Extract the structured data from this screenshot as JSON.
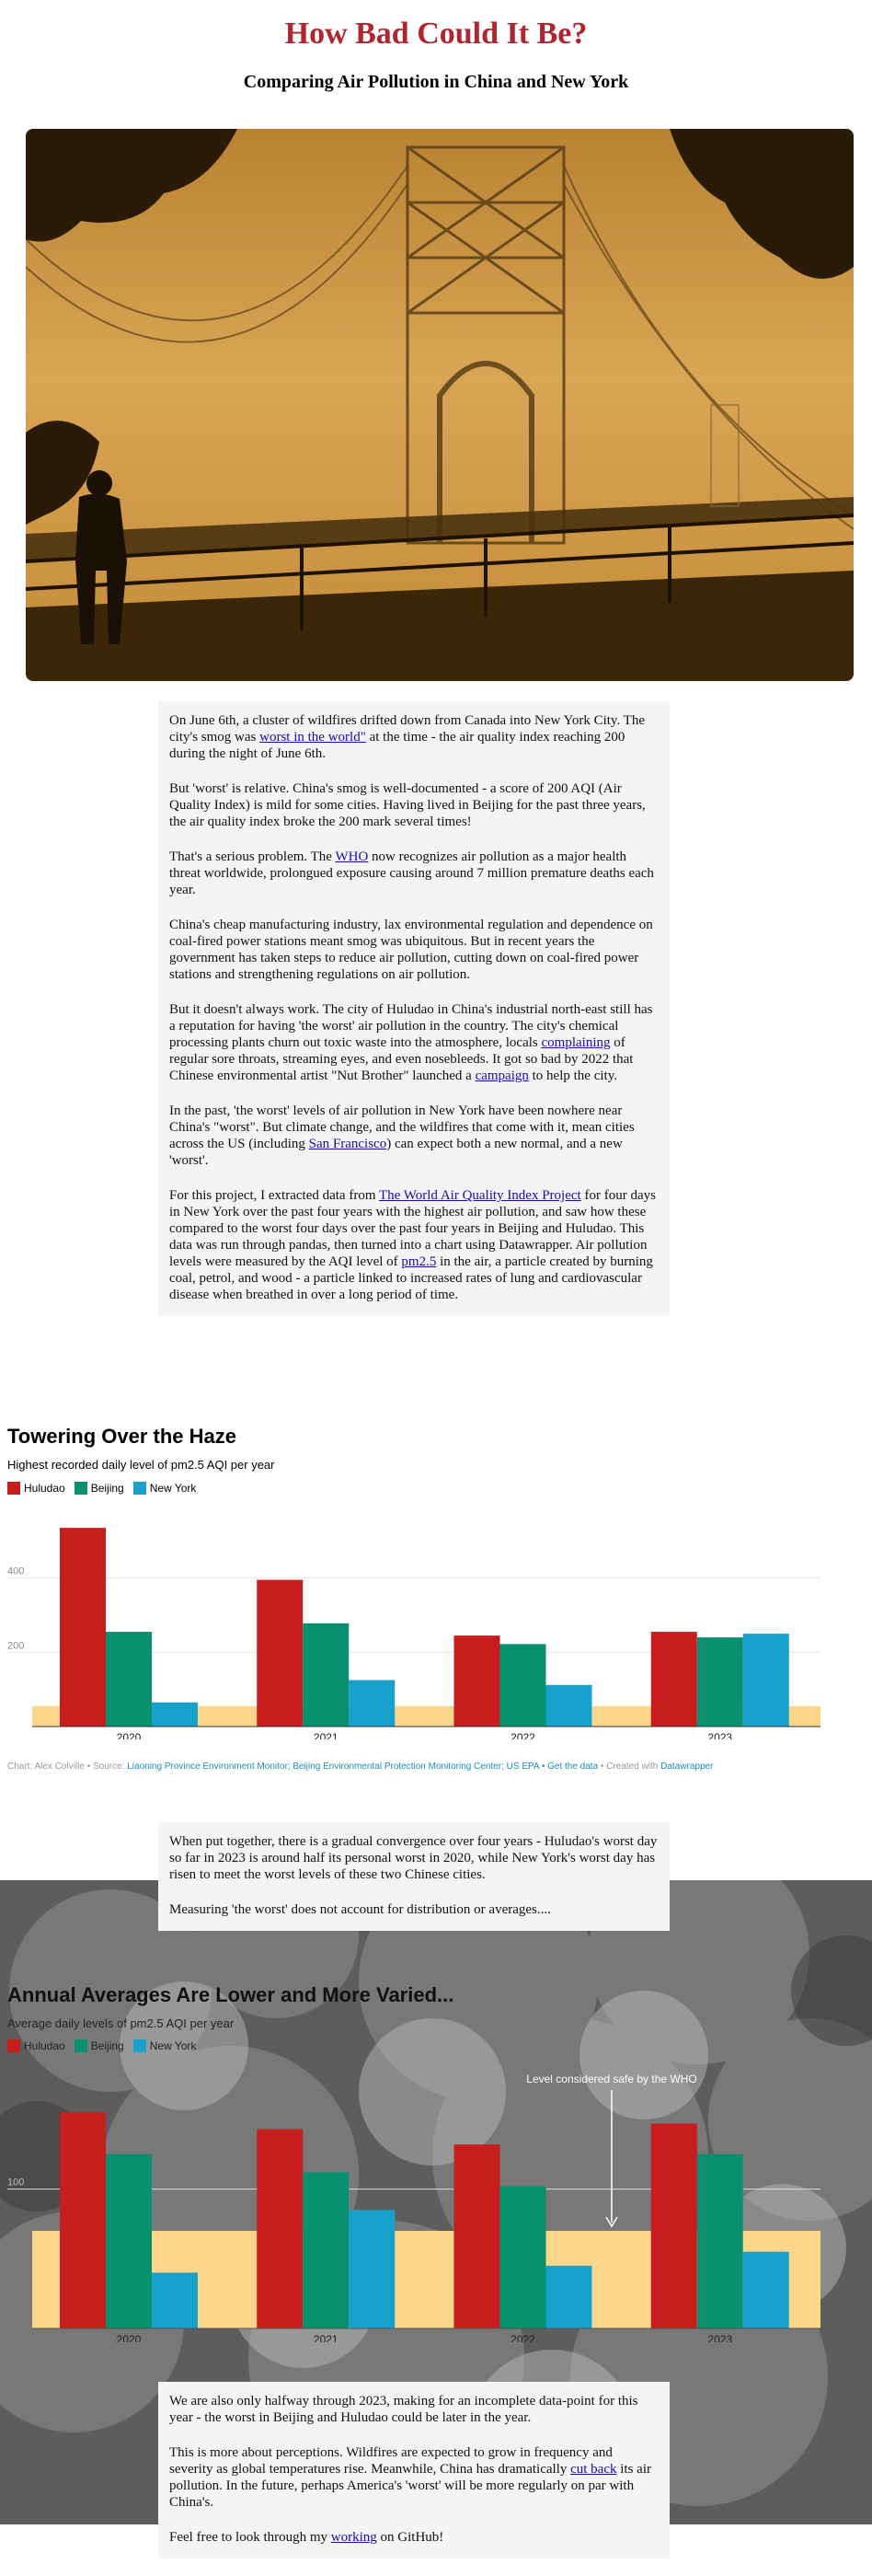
{
  "header": {
    "title": "How Bad Could It Be?",
    "subtitle": "Comparing Air Pollution in China and New York"
  },
  "intro": {
    "p1_a": "On June 6th, a cluster of wildfires drifted down from Canada into New York City. The city's smog was ",
    "p1_link": "worst in the world\"",
    "p1_b": " at the time - the air quality index reaching 200 during the night of June 6th.",
    "p2": "But 'worst' is relative. China's smog is well-documented - a score of 200 AQI (Air Quality Index) is mild for some cities. Having lived in Beijing for the past three years, the air quality index broke the 200 mark several times!",
    "p3_a": "That's a serious problem. The ",
    "p3_link": "WHO",
    "p3_b": " now recognizes air pollution as a major health threat worldwide, prolongued exposure causing around 7 million premature deaths each year.",
    "p4": "China's cheap manufacturing industry, lax environmental regulation and dependence on coal-fired power stations meant smog was ubiquitous. But in recent years the government has taken steps to reduce air pollution, cutting down on coal-fired power stations and strengthening regulations on air pollution.",
    "p5_a": "But it doesn't always work. The city of Huludao in China's industrial north-east still has a reputation for having 'the worst' air pollution in the country. The city's chemical processing plants churn out toxic waste into the atmosphere, locals ",
    "p5_link1": "complaining",
    "p5_b": " of regular sore throats, streaming eyes, and even nosebleeds. It got so bad by 2022 that Chinese environmental artist \"Nut Brother\" launched a ",
    "p5_link2": "campaign",
    "p5_c": " to help the city.",
    "p6_a": "In the past, 'the worst' levels of air pollution in New York have been nowhere near China's \"worst\". But climate change, and the wildfires that come with it, mean cities across the US (including ",
    "p6_link": "San Francisco",
    "p6_b": ") can expect both a new normal, and a new 'worst'.",
    "p7_a": "For this project, I extracted data from ",
    "p7_link1": "The World Air Quality Index Project",
    "p7_b": " for four days in New York over the past four years with the highest air pollution, and saw how these compared to the worst four days over the past four years in Beijing and Huludao. This data was run through pandas, then turned into a chart using Datawrapper. Air pollution levels were measured by the AQI level of ",
    "p7_link2": "pm2.5",
    "p7_c": " in the air, a particle created by burning coal, petrol, and wood - a particle linked to increased rates of lung and cardiovascular disease when breathed in over a long period of time."
  },
  "chart1": {
    "heading": "Towering Over the Haze",
    "subheading": "Highest recorded daily level of pm2.5 AQI per year",
    "source_prefix": "Chart: Alex Colville • Source: ",
    "source_links": "Liaoning Province Environment Monitor; Beijing Environmental Protection Monitoring Center; US EPA • Get the data",
    "source_mid": " • Created with ",
    "source_tool": "Datawrapper"
  },
  "middle": {
    "p1": "When put together, there is a gradual convergence over four years - Huludao's worst day so far in 2023 is around half its personal worst in 2020, while New York's worst day has risen to meet the worst levels of these two Chinese cities.",
    "p2": "Measuring 'the worst' does not account for distribution or averages...."
  },
  "chart2": {
    "heading": "Annual Averages Are Lower and More Varied...",
    "subheading": "Average daily levels of pm2.5 AQI per year",
    "annotation": "Level considered safe by the WHO"
  },
  "closing": {
    "p1": "We are also only halfway through 2023, making for an incomplete data-point for this year - the worst in Beijing and Huludao could be later in the year.",
    "p2_a": "This is more about perceptions. Wildfires are expected to grow in frequency and severity as global temperatures rise. Meanwhile, China has dramatically ",
    "p2_link": "cut back",
    "p2_b": " its air pollution. In the future, perhaps America's 'worst' will be more regularly on par with China's.",
    "p3_a": "Feel free to look through my ",
    "p3_link": "working",
    "p3_b": " on GitHub!"
  },
  "colors": {
    "huludao": "#c71e1d",
    "beijing": "#09906f",
    "newyork": "#18a1cd",
    "safe_band": "#fbd68b",
    "title_red": "#b0262f"
  },
  "chart_data": [
    {
      "type": "bar",
      "title": "Towering Over the Haze",
      "subtitle": "Highest recorded daily level of pm2.5 AQI per year",
      "categories": [
        "2020",
        "2021",
        "2022",
        "2023"
      ],
      "series": [
        {
          "name": "Huludao",
          "values": [
            535,
            395,
            245,
            255
          ]
        },
        {
          "name": "Beijing",
          "values": [
            255,
            278,
            222,
            240
          ]
        },
        {
          "name": "New York",
          "values": [
            65,
            125,
            112,
            250
          ]
        }
      ],
      "yticks": [
        200,
        400
      ],
      "ylim": [
        0,
        560
      ],
      "safe_band": [
        0,
        55
      ],
      "grid": true,
      "legend_position": "top-left"
    },
    {
      "type": "bar",
      "title": "Annual Averages Are Lower and More Varied...",
      "subtitle": "Average daily levels of pm2.5 AQI per year",
      "categories": [
        "2020",
        "2021",
        "2022",
        "2023"
      ],
      "series": [
        {
          "name": "Huludao",
          "values": [
            155,
            143,
            132,
            147
          ]
        },
        {
          "name": "Beijing",
          "values": [
            125,
            112,
            102,
            125
          ]
        },
        {
          "name": "New York",
          "values": [
            40,
            85,
            45,
            55
          ]
        }
      ],
      "yticks": [
        100
      ],
      "ylim": [
        0,
        175
      ],
      "safe_band": [
        0,
        70
      ],
      "grid": true,
      "legend_position": "top-left",
      "annotations": [
        "Level considered safe by the WHO"
      ]
    }
  ]
}
